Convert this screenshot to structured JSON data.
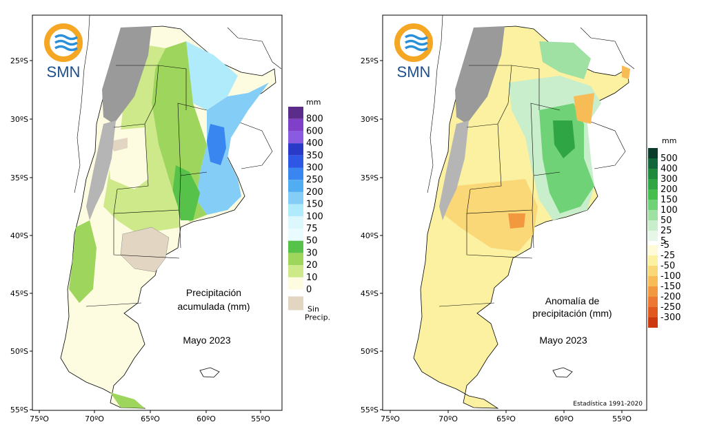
{
  "logo_text": "SMN",
  "y_axis_labels": [
    "25ºS",
    "30ºS",
    "35ºS",
    "40ºS",
    "45ºS",
    "50ºS",
    "55ºS"
  ],
  "x_axis_labels": [
    "75ºO",
    "70ºO",
    "65ºO",
    "60ºO",
    "55ºO"
  ],
  "left_map": {
    "title_line1": "Precipitación",
    "title_line2": "acumulada (mm)",
    "period": "Mayo 2023",
    "legend_unit": "mm",
    "legend_labels": [
      "800",
      "600",
      "400",
      "350",
      "300",
      "250",
      "200",
      "150",
      "100",
      "75",
      "50",
      "30",
      "20",
      "10",
      "0"
    ],
    "legend_colors": [
      "#5b2c8a",
      "#7f3fc9",
      "#8a5be0",
      "#2a3ac8",
      "#2f57e6",
      "#3a86f0",
      "#52acf2",
      "#84cdf6",
      "#b0ebfb",
      "#dcf8fd",
      "#e9fbfe",
      "#57c24a",
      "#9ed55c",
      "#cde98a",
      "#fdfbe0"
    ],
    "no_precip_label_1": "Sin",
    "no_precip_label_2": "Precip.",
    "no_precip_color": "#e2d5c2"
  },
  "right_map": {
    "title_line1": "Anomalía de",
    "title_line2": "precipitación (mm)",
    "period": "Mayo 2023",
    "legend_unit": "mm",
    "legend_labels": [
      "500",
      "400",
      "300",
      "200",
      "150",
      "100",
      "50",
      "25",
      "5",
      "-5",
      "-25",
      "-50",
      "-100",
      "-150",
      "-200",
      "-250",
      "-300"
    ],
    "legend_colors_pos": [
      "#0b3b2a",
      "#13663a",
      "#1f8a3b",
      "#2fa544",
      "#45be4e",
      "#6fd276",
      "#9fe1a3",
      "#c9eecc",
      "#e6f7e8"
    ],
    "legend_colors_neg": [
      "#fffbd9",
      "#fbf1a0",
      "#fad877",
      "#f7bc55",
      "#f2983f",
      "#ec7831",
      "#e05a20",
      "#cc3a10"
    ],
    "statistic_note": "Estadística 1991-2020"
  }
}
